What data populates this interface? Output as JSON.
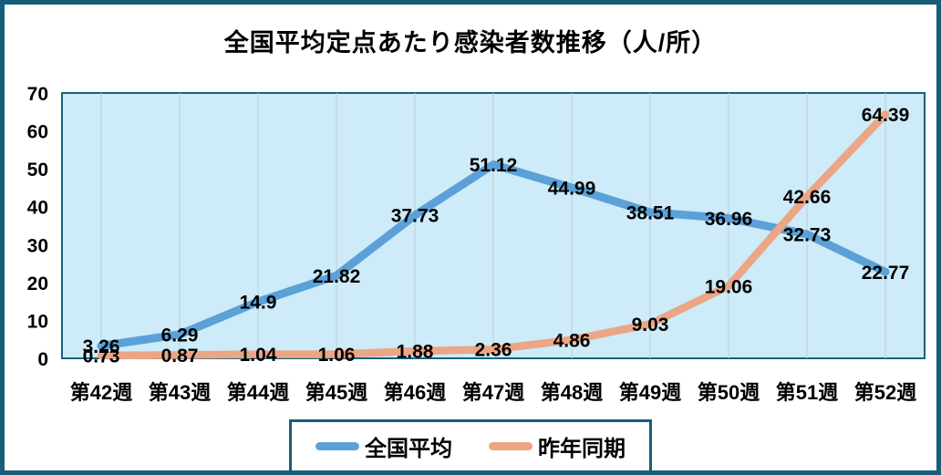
{
  "chart_data": {
    "type": "line",
    "title": "全国平均定点あたり感染者数推移（人/所）",
    "categories": [
      "第42週",
      "第43週",
      "第44週",
      "第45週",
      "第46週",
      "第47週",
      "第48週",
      "第49週",
      "第50週",
      "第51週",
      "第52週"
    ],
    "series": [
      {
        "name": "全国平均",
        "color": "#5BA1D8",
        "values": [
          3.26,
          6.29,
          14.9,
          21.82,
          37.73,
          51.12,
          44.99,
          38.51,
          36.96,
          32.73,
          22.77
        ]
      },
      {
        "name": "昨年同期",
        "color": "#ECA585",
        "values": [
          0.73,
          0.87,
          1.04,
          1.06,
          1.88,
          2.36,
          4.86,
          9.03,
          19.06,
          42.66,
          64.39
        ]
      }
    ],
    "ylim": [
      0,
      70
    ],
    "yticks": [
      0,
      10,
      20,
      30,
      40,
      50,
      60,
      70
    ],
    "xlabel": "",
    "ylabel": "",
    "grid": "vertical-only",
    "legend_position": "bottom",
    "data_labels": "shown-at-points",
    "colors": {
      "frame_border": "#175E78",
      "plot_border": "#19617F",
      "plot_background": "#CDEBF8",
      "gridline": "#C2CDD3",
      "label_text": "#000000"
    }
  }
}
